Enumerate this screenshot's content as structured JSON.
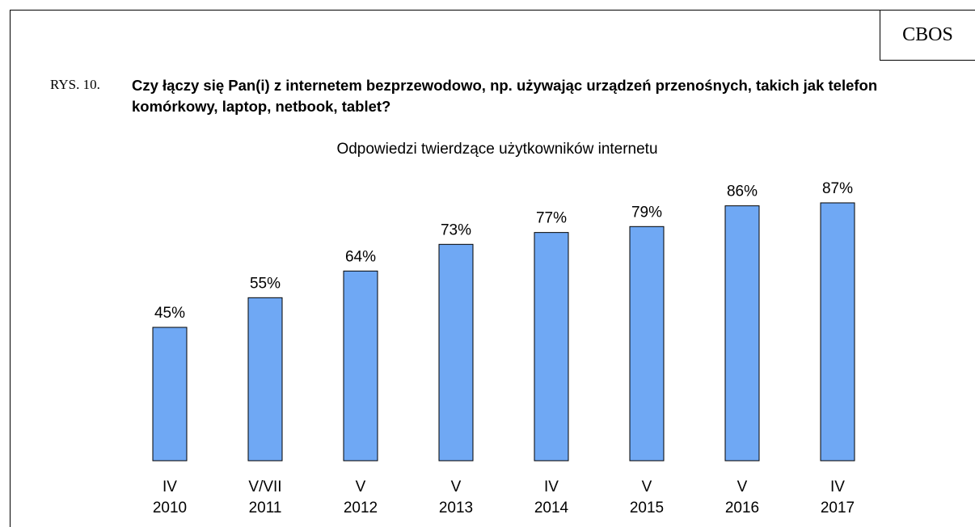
{
  "brand": "CBOS",
  "figure_label": "RYS. 10.",
  "chart_data": {
    "type": "bar",
    "title": "Czy łączy się Pan(i) z internetem bezprzewodowo, np. używając urządzeń przenośnych, takich jak telefon komórkowy, laptop, netbook, tablet?",
    "subtitle": "Odpowiedzi twierdzące użytkowników internetu",
    "categories": [
      [
        "IV",
        "2010"
      ],
      [
        "V/VII",
        "2011"
      ],
      [
        "V",
        "2012"
      ],
      [
        "V",
        "2013"
      ],
      [
        "IV",
        "2014"
      ],
      [
        "V",
        "2015"
      ],
      [
        "V",
        "2016"
      ],
      [
        "IV",
        "2017"
      ]
    ],
    "values": [
      45,
      55,
      64,
      73,
      77,
      79,
      86,
      87
    ],
    "value_labels": [
      "45%",
      "55%",
      "64%",
      "73%",
      "77%",
      "79%",
      "86%",
      "87%"
    ],
    "color": "#6fa8f4"
  }
}
